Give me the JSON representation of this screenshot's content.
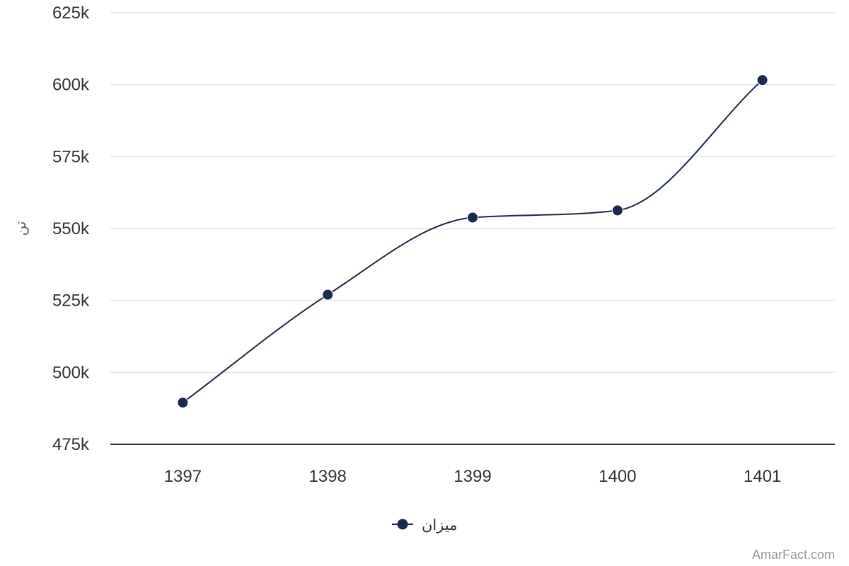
{
  "chart_data": {
    "type": "line",
    "title": "",
    "xlabel": "",
    "ylabel": "تن",
    "categories": [
      "1397",
      "1398",
      "1399",
      "1400",
      "1401"
    ],
    "series": [
      {
        "name": "میزان",
        "values": [
          489500,
          527000,
          553800,
          556300,
          601600
        ],
        "color": "#1b2a4a"
      }
    ],
    "ylim": [
      475000,
      625000
    ],
    "yticks": [
      475000,
      500000,
      525000,
      550000,
      575000,
      600000,
      625000
    ],
    "ytick_labels": [
      "475k",
      "500k",
      "525k",
      "550k",
      "575k",
      "600k",
      "625k"
    ],
    "grid": true,
    "legend_position": "bottom-center",
    "smooth": true
  },
  "credit": "AmarFact.com",
  "colors": {
    "series": "#1b2a4a",
    "grid": "#e6e6e6",
    "axis": "#333333"
  }
}
